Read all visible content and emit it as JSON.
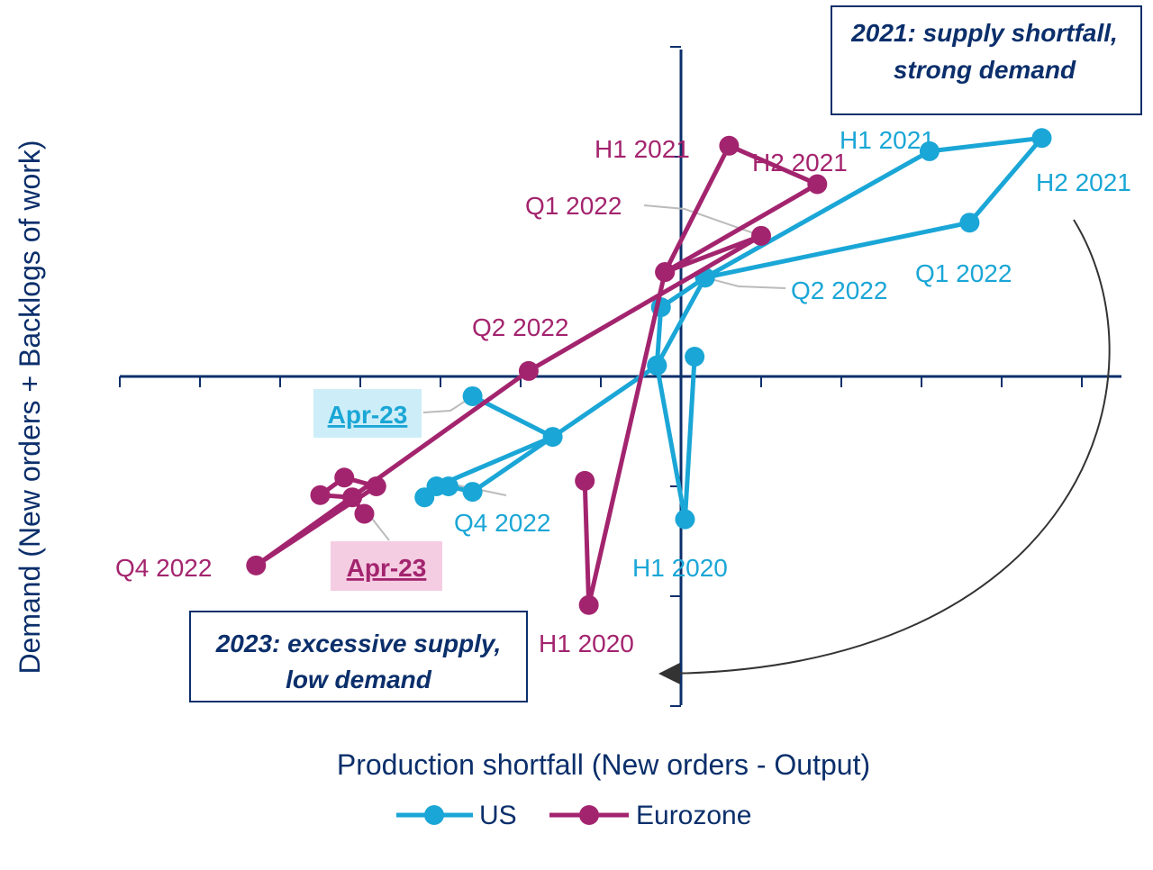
{
  "chart_data": {
    "type": "scatter",
    "xlabel": "Production shortfall (New orders - Output)",
    "ylabel": "Demand (New orders + Backlogs of work)",
    "xlim": [
      -7,
      5.5
    ],
    "ylim": [
      -3,
      3
    ],
    "colors": {
      "US": "#1aa6d6",
      "Eurozone": "#a3246e",
      "axis": "#0b2f6b",
      "text": "#0b2f6b"
    },
    "series": [
      {
        "name": "US",
        "points": [
          [
            0.17,
            0.18
          ],
          [
            0.05,
            -1.3
          ],
          [
            -0.3,
            0.1
          ],
          [
            -0.25,
            0.63
          ],
          [
            0.3,
            0.9
          ],
          [
            3.6,
            1.4
          ],
          [
            4.5,
            2.17
          ],
          [
            3.1,
            2.05
          ],
          [
            0.3,
            0.9
          ],
          [
            -0.3,
            0.1
          ],
          [
            -2.6,
            -1.05
          ],
          [
            -2.9,
            -1.0
          ],
          [
            -3.2,
            -1.1
          ],
          [
            -3.05,
            -1.0
          ],
          [
            -1.6,
            -0.55
          ],
          [
            -2.6,
            -0.18
          ]
        ]
      },
      {
        "name": "Eurozone",
        "points": [
          [
            -1.2,
            -0.95
          ],
          [
            -1.15,
            -2.08
          ],
          [
            -0.2,
            0.95
          ],
          [
            0.6,
            2.1
          ],
          [
            1.7,
            1.75
          ],
          [
            -0.2,
            0.95
          ],
          [
            1.0,
            1.28
          ],
          [
            -1.9,
            0.05
          ],
          [
            -5.3,
            -1.72
          ],
          [
            -3.8,
            -1.0
          ],
          [
            -4.2,
            -0.92
          ],
          [
            -4.5,
            -1.08
          ],
          [
            -4.1,
            -1.1
          ],
          [
            -3.95,
            -1.25
          ]
        ]
      }
    ],
    "annotations": {
      "us": [
        {
          "text": "H1 2021"
        },
        {
          "text": "H2 2021"
        },
        {
          "text": "Q1 2022"
        },
        {
          "text": "Q2 2022"
        },
        {
          "text": "Q4 2022"
        },
        {
          "text": "H1 2020"
        },
        {
          "text": "Apr-23"
        }
      ],
      "ez": [
        {
          "text": "H1 2021"
        },
        {
          "text": "H2 2021"
        },
        {
          "text": "Q1 2022"
        },
        {
          "text": "Q2 2022"
        },
        {
          "text": "Q4 2022"
        },
        {
          "text": "H1 2020"
        },
        {
          "text": "Apr-23"
        }
      ]
    },
    "boxes": {
      "top": [
        "2021: supply shortfall,",
        "strong demand"
      ],
      "bottom": [
        "2023: excessive supply,",
        "low demand"
      ]
    },
    "legend": {
      "position": "bottom",
      "items": [
        "US",
        "Eurozone"
      ]
    }
  }
}
